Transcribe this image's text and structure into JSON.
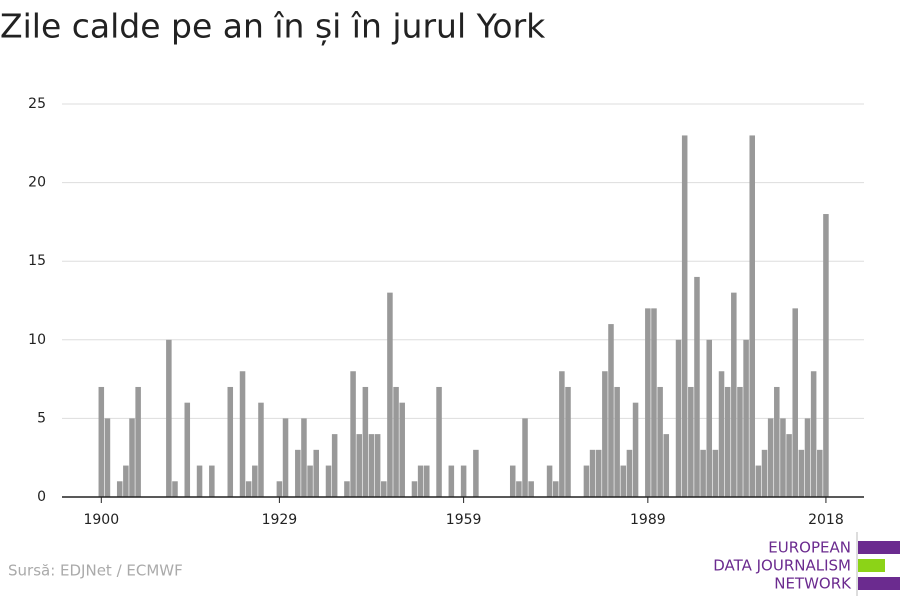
{
  "chart_data": {
    "type": "bar",
    "title": "Zile calde pe an în și în jurul York",
    "x": [
      1900,
      1901,
      1902,
      1903,
      1904,
      1905,
      1906,
      1907,
      1908,
      1909,
      1910,
      1911,
      1912,
      1913,
      1914,
      1915,
      1916,
      1917,
      1918,
      1919,
      1920,
      1921,
      1922,
      1923,
      1924,
      1925,
      1926,
      1927,
      1928,
      1929,
      1930,
      1931,
      1932,
      1933,
      1934,
      1935,
      1936,
      1937,
      1938,
      1939,
      1940,
      1941,
      1942,
      1943,
      1944,
      1945,
      1946,
      1947,
      1948,
      1949,
      1950,
      1951,
      1952,
      1953,
      1954,
      1955,
      1956,
      1957,
      1958,
      1959,
      1960,
      1961,
      1962,
      1963,
      1964,
      1965,
      1966,
      1967,
      1968,
      1969,
      1970,
      1971,
      1972,
      1973,
      1974,
      1975,
      1976,
      1977,
      1978,
      1979,
      1980,
      1981,
      1982,
      1983,
      1984,
      1985,
      1986,
      1987,
      1988,
      1989,
      1990,
      1991,
      1992,
      1993,
      1994,
      1995,
      1996,
      1997,
      1998,
      1999,
      2000,
      2001,
      2002,
      2003,
      2004,
      2005,
      2006,
      2007,
      2008,
      2009,
      2010,
      2011,
      2012,
      2013,
      2014,
      2015,
      2016,
      2017,
      2018
    ],
    "values": [
      7,
      5,
      0,
      1,
      2,
      5,
      7,
      0,
      0,
      0,
      0,
      10,
      1,
      0,
      6,
      0,
      2,
      0,
      2,
      0,
      0,
      7,
      0,
      8,
      1,
      2,
      6,
      0,
      0,
      1,
      5,
      0,
      3,
      5,
      2,
      3,
      0,
      2,
      4,
      0,
      1,
      8,
      4,
      7,
      4,
      4,
      1,
      13,
      7,
      6,
      0,
      1,
      2,
      2,
      0,
      7,
      0,
      2,
      0,
      2,
      0,
      3,
      0,
      0,
      0,
      0,
      0,
      2,
      1,
      5,
      1,
      0,
      0,
      2,
      1,
      8,
      7,
      0,
      0,
      2,
      3,
      3,
      8,
      11,
      7,
      2,
      3,
      6,
      0,
      12,
      12,
      7,
      4,
      0,
      10,
      23,
      7,
      14,
      3,
      10,
      3,
      8,
      7,
      13,
      7,
      10,
      23,
      2,
      3,
      5,
      7,
      5,
      4,
      12,
      3,
      5,
      8,
      3,
      18
    ],
    "color": "#999999",
    "xlim": [
      1893.6,
      2024.2
    ],
    "xticks": [
      1900,
      1929,
      1959,
      1989,
      2018
    ],
    "ylim": [
      0,
      25
    ],
    "yticks": [
      0,
      5,
      10,
      15,
      20,
      25
    ],
    "grid": true,
    "source": "Sursă: EDJNet / ECMWF",
    "logo": [
      "EUROPEAN",
      "DATA JOURNALISM",
      "NETWORK"
    ]
  }
}
